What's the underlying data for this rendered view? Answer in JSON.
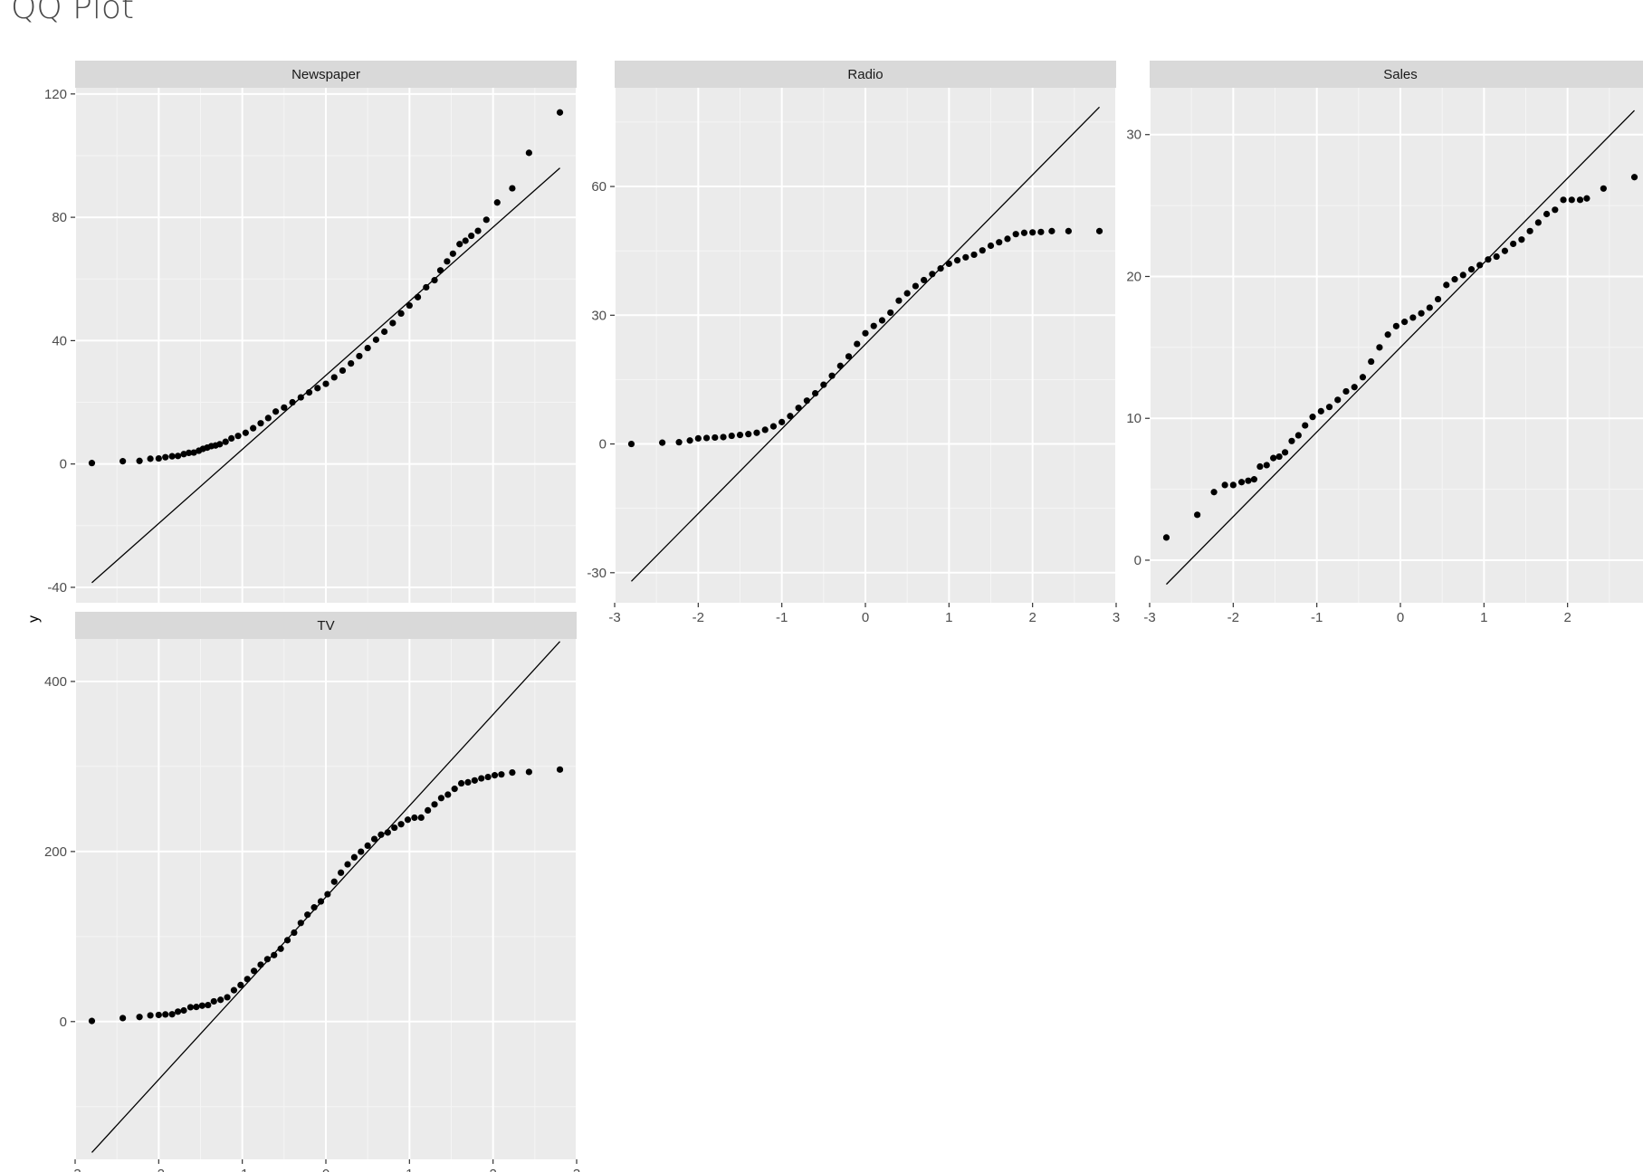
{
  "title": "QQ Plot",
  "colors": {
    "panel_background": "#ebebeb",
    "strip_background": "#d9d9d9",
    "grid_major": "#ffffff",
    "grid_minor": "#f5f5f5",
    "points": "#000000",
    "reference_line": "#000000",
    "tick_text": "#4d4d4d"
  },
  "chart_data": {
    "type": "scatter",
    "title": "QQ Plot",
    "xlabel": "",
    "ylabel": "y",
    "x_ticks": [
      -3,
      -2,
      -1,
      0,
      1,
      2,
      3
    ],
    "x_range": [
      -3,
      3
    ],
    "grid": true,
    "facets": [
      {
        "label": "Newspaper",
        "y_ticks": [
          -40,
          0,
          40,
          80,
          120
        ],
        "y_range": [
          -45,
          122
        ],
        "reference_line": [
          [
            -2.8,
            -38.5
          ],
          [
            2.8,
            96
          ]
        ],
        "points": [
          [
            -2.8,
            0.3
          ],
          [
            -2.43,
            0.9
          ],
          [
            -2.23,
            1.0
          ],
          [
            -2.1,
            1.7
          ],
          [
            -2.0,
            1.8
          ],
          [
            -1.92,
            2.2
          ],
          [
            -1.84,
            2.5
          ],
          [
            -1.77,
            2.6
          ],
          [
            -1.7,
            3.2
          ],
          [
            -1.64,
            3.6
          ],
          [
            -1.58,
            3.7
          ],
          [
            -1.52,
            4.3
          ],
          [
            -1.47,
            4.9
          ],
          [
            -1.42,
            5.3
          ],
          [
            -1.37,
            5.8
          ],
          [
            -1.32,
            6.0
          ],
          [
            -1.27,
            6.4
          ],
          [
            -1.2,
            7.2
          ],
          [
            -1.13,
            8.3
          ],
          [
            -1.05,
            9.1
          ],
          [
            -0.96,
            10.1
          ],
          [
            -0.87,
            11.6
          ],
          [
            -0.78,
            13.2
          ],
          [
            -0.69,
            14.9
          ],
          [
            -0.6,
            17.0
          ],
          [
            -0.5,
            18.3
          ],
          [
            -0.4,
            20.0
          ],
          [
            -0.3,
            21.6
          ],
          [
            -0.2,
            23.2
          ],
          [
            -0.1,
            24.6
          ],
          [
            0.0,
            26.0
          ],
          [
            0.1,
            28.1
          ],
          [
            0.2,
            30.3
          ],
          [
            0.3,
            32.6
          ],
          [
            0.4,
            35.0
          ],
          [
            0.5,
            37.6
          ],
          [
            0.6,
            40.3
          ],
          [
            0.7,
            42.9
          ],
          [
            0.8,
            45.7
          ],
          [
            0.9,
            48.8
          ],
          [
            1.0,
            51.4
          ],
          [
            1.1,
            54.1
          ],
          [
            1.2,
            57.3
          ],
          [
            1.3,
            59.6
          ],
          [
            1.37,
            62.8
          ],
          [
            1.45,
            65.7
          ],
          [
            1.52,
            68.2
          ],
          [
            1.6,
            71.3
          ],
          [
            1.67,
            72.4
          ],
          [
            1.74,
            74.0
          ],
          [
            1.82,
            75.6
          ],
          [
            1.92,
            79.2
          ],
          [
            2.05,
            84.8
          ],
          [
            2.23,
            89.4
          ],
          [
            2.43,
            100.9
          ],
          [
            2.8,
            114.0
          ]
        ]
      },
      {
        "label": "Radio",
        "y_ticks": [
          -30,
          0,
          30,
          60
        ],
        "y_range": [
          -37,
          83
        ],
        "reference_line": [
          [
            -2.8,
            -32
          ],
          [
            2.8,
            78.5
          ]
        ],
        "points": [
          [
            -2.8,
            0.0
          ],
          [
            -2.43,
            0.3
          ],
          [
            -2.23,
            0.4
          ],
          [
            -2.1,
            0.8
          ],
          [
            -2.0,
            1.3
          ],
          [
            -1.9,
            1.4
          ],
          [
            -1.8,
            1.5
          ],
          [
            -1.7,
            1.6
          ],
          [
            -1.6,
            1.9
          ],
          [
            -1.5,
            2.1
          ],
          [
            -1.4,
            2.3
          ],
          [
            -1.3,
            2.6
          ],
          [
            -1.2,
            3.3
          ],
          [
            -1.1,
            4.1
          ],
          [
            -1.0,
            5.1
          ],
          [
            -0.9,
            6.5
          ],
          [
            -0.8,
            8.4
          ],
          [
            -0.7,
            10.1
          ],
          [
            -0.6,
            11.8
          ],
          [
            -0.5,
            13.8
          ],
          [
            -0.4,
            15.9
          ],
          [
            -0.3,
            18.2
          ],
          [
            -0.2,
            20.4
          ],
          [
            -0.1,
            23.3
          ],
          [
            0.0,
            25.8
          ],
          [
            0.1,
            27.5
          ],
          [
            0.2,
            28.8
          ],
          [
            0.3,
            30.6
          ],
          [
            0.4,
            33.4
          ],
          [
            0.5,
            35.1
          ],
          [
            0.6,
            36.8
          ],
          [
            0.7,
            38.2
          ],
          [
            0.8,
            39.6
          ],
          [
            0.9,
            40.9
          ],
          [
            1.0,
            42.0
          ],
          [
            1.1,
            42.8
          ],
          [
            1.2,
            43.5
          ],
          [
            1.3,
            44.1
          ],
          [
            1.4,
            45.1
          ],
          [
            1.5,
            46.2
          ],
          [
            1.6,
            47.0
          ],
          [
            1.7,
            47.8
          ],
          [
            1.8,
            48.9
          ],
          [
            1.9,
            49.2
          ],
          [
            2.0,
            49.3
          ],
          [
            2.1,
            49.4
          ],
          [
            2.23,
            49.6
          ],
          [
            2.43,
            49.6
          ],
          [
            2.8,
            49.6
          ]
        ]
      },
      {
        "label": "Sales",
        "y_ticks": [
          0,
          10,
          20,
          30
        ],
        "y_range": [
          -3,
          33.3
        ],
        "reference_line": [
          [
            -2.8,
            -1.7
          ],
          [
            2.8,
            31.7
          ]
        ],
        "points": [
          [
            -2.8,
            1.6
          ],
          [
            -2.43,
            3.2
          ],
          [
            -2.23,
            4.8
          ],
          [
            -2.1,
            5.3
          ],
          [
            -2.0,
            5.3
          ],
          [
            -1.9,
            5.5
          ],
          [
            -1.82,
            5.6
          ],
          [
            -1.75,
            5.7
          ],
          [
            -1.68,
            6.6
          ],
          [
            -1.6,
            6.7
          ],
          [
            -1.52,
            7.2
          ],
          [
            -1.45,
            7.3
          ],
          [
            -1.38,
            7.6
          ],
          [
            -1.3,
            8.4
          ],
          [
            -1.22,
            8.8
          ],
          [
            -1.14,
            9.5
          ],
          [
            -1.05,
            10.1
          ],
          [
            -0.95,
            10.5
          ],
          [
            -0.85,
            10.8
          ],
          [
            -0.75,
            11.3
          ],
          [
            -0.65,
            11.9
          ],
          [
            -0.55,
            12.2
          ],
          [
            -0.45,
            12.9
          ],
          [
            -0.35,
            14.0
          ],
          [
            -0.25,
            15.0
          ],
          [
            -0.15,
            15.9
          ],
          [
            -0.05,
            16.5
          ],
          [
            0.05,
            16.8
          ],
          [
            0.15,
            17.1
          ],
          [
            0.25,
            17.4
          ],
          [
            0.35,
            17.8
          ],
          [
            0.45,
            18.4
          ],
          [
            0.55,
            19.4
          ],
          [
            0.65,
            19.8
          ],
          [
            0.75,
            20.1
          ],
          [
            0.85,
            20.5
          ],
          [
            0.95,
            20.8
          ],
          [
            1.05,
            21.2
          ],
          [
            1.15,
            21.4
          ],
          [
            1.25,
            21.8
          ],
          [
            1.35,
            22.3
          ],
          [
            1.45,
            22.6
          ],
          [
            1.55,
            23.2
          ],
          [
            1.65,
            23.8
          ],
          [
            1.75,
            24.4
          ],
          [
            1.85,
            24.7
          ],
          [
            1.95,
            25.4
          ],
          [
            2.05,
            25.4
          ],
          [
            2.15,
            25.4
          ],
          [
            2.23,
            25.5
          ],
          [
            2.43,
            26.2
          ],
          [
            2.8,
            27.0
          ]
        ]
      },
      {
        "label": "TV",
        "y_ticks": [
          0,
          200,
          400
        ],
        "y_range": [
          -162,
          450
        ],
        "reference_line": [
          [
            -2.8,
            -154
          ],
          [
            2.8,
            447
          ]
        ],
        "points": [
          [
            -2.8,
            0.7
          ],
          [
            -2.43,
            4.1
          ],
          [
            -2.23,
            5.4
          ],
          [
            -2.1,
            7.3
          ],
          [
            -2.0,
            7.8
          ],
          [
            -1.92,
            8.4
          ],
          [
            -1.84,
            8.6
          ],
          [
            -1.77,
            11.7
          ],
          [
            -1.7,
            13.1
          ],
          [
            -1.62,
            16.9
          ],
          [
            -1.55,
            17.2
          ],
          [
            -1.48,
            18.7
          ],
          [
            -1.41,
            19.4
          ],
          [
            -1.34,
            23.8
          ],
          [
            -1.26,
            25.6
          ],
          [
            -1.18,
            28.6
          ],
          [
            -1.1,
            36.9
          ],
          [
            -1.02,
            43.0
          ],
          [
            -0.94,
            50.0
          ],
          [
            -0.86,
            59.6
          ],
          [
            -0.78,
            66.9
          ],
          [
            -0.7,
            73.4
          ],
          [
            -0.62,
            78.2
          ],
          [
            -0.54,
            85.7
          ],
          [
            -0.46,
            95.7
          ],
          [
            -0.38,
            104.6
          ],
          [
            -0.3,
            116.0
          ],
          [
            -0.22,
            125.7
          ],
          [
            -0.14,
            134.3
          ],
          [
            -0.06,
            141.3
          ],
          [
            0.02,
            149.8
          ],
          [
            0.1,
            164.5
          ],
          [
            0.18,
            175.1
          ],
          [
            0.26,
            184.9
          ],
          [
            0.34,
            193.2
          ],
          [
            0.42,
            199.8
          ],
          [
            0.5,
            206.9
          ],
          [
            0.58,
            214.7
          ],
          [
            0.66,
            219.8
          ],
          [
            0.74,
            222.4
          ],
          [
            0.82,
            228.0
          ],
          [
            0.9,
            232.1
          ],
          [
            0.98,
            237.4
          ],
          [
            1.06,
            239.8
          ],
          [
            1.14,
            239.9
          ],
          [
            1.22,
            248.4
          ],
          [
            1.3,
            255.4
          ],
          [
            1.38,
            262.9
          ],
          [
            1.46,
            266.9
          ],
          [
            1.54,
            273.7
          ],
          [
            1.62,
            280.2
          ],
          [
            1.7,
            281.4
          ],
          [
            1.78,
            283.6
          ],
          [
            1.86,
            286.0
          ],
          [
            1.94,
            287.6
          ],
          [
            2.02,
            289.7
          ],
          [
            2.1,
            290.7
          ],
          [
            2.23,
            292.9
          ],
          [
            2.43,
            293.6
          ],
          [
            2.8,
            296.4
          ]
        ]
      }
    ]
  }
}
